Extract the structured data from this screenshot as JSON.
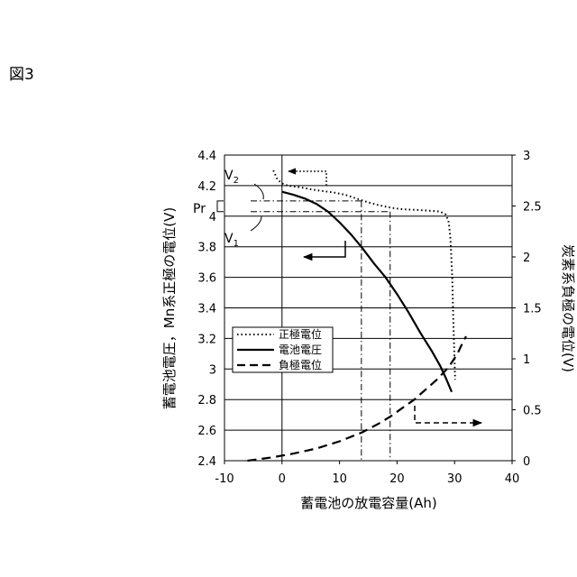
{
  "figure_label": "図3",
  "chart_data": {
    "type": "line",
    "xlabel": "蓄電池の放電容量(Ah)",
    "ylabel_left": "蓄電池電圧，Mn系正極の電位(V)",
    "ylabel_right": "炭素系負極の電位(V)",
    "xlim": [
      -10,
      40
    ],
    "ylim_left": [
      2.4,
      4.4
    ],
    "ylim_right": [
      0,
      3
    ],
    "x_ticks": [
      "-10",
      "0",
      "10",
      "20",
      "30",
      "40"
    ],
    "y_left_ticks": [
      "2.4",
      "2.6",
      "2.8",
      "3",
      "3.2",
      "3.4",
      "3.6",
      "3.8",
      "4",
      "4.2",
      "4.4"
    ],
    "y_right_ticks": [
      "0",
      "0.5",
      "1",
      "1.5",
      "2",
      "2.5",
      "3"
    ],
    "grid": "horizontal",
    "legend_position": "left-middle",
    "series": [
      {
        "name": "正極電位",
        "axis": "left",
        "style": "dotted",
        "points": [
          [
            -1.5,
            4.3
          ],
          [
            -0.8,
            4.24
          ],
          [
            0,
            4.215
          ],
          [
            1,
            4.2
          ],
          [
            3,
            4.19
          ],
          [
            6,
            4.17
          ],
          [
            9,
            4.155
          ],
          [
            11,
            4.14
          ],
          [
            13,
            4.115
          ],
          [
            15,
            4.09
          ],
          [
            17,
            4.07
          ],
          [
            19,
            4.055
          ],
          [
            21,
            4.045
          ],
          [
            24,
            4.04
          ],
          [
            26,
            4.035
          ],
          [
            27.5,
            4.03
          ],
          [
            28.5,
            4.01
          ],
          [
            29,
            3.96
          ],
          [
            29.3,
            3.85
          ],
          [
            29.6,
            3.6
          ],
          [
            29.8,
            3.3
          ],
          [
            30,
            3.05
          ],
          [
            30.1,
            2.93
          ]
        ]
      },
      {
        "name": "電池電圧",
        "axis": "left",
        "style": "solid",
        "points": [
          [
            0,
            4.16
          ],
          [
            2,
            4.14
          ],
          [
            4,
            4.115
          ],
          [
            6,
            4.08
          ],
          [
            8,
            4.03
          ],
          [
            10,
            3.96
          ],
          [
            12,
            3.88
          ],
          [
            14,
            3.79
          ],
          [
            16,
            3.69
          ],
          [
            18,
            3.6
          ],
          [
            20,
            3.49
          ],
          [
            22,
            3.37
          ],
          [
            24,
            3.24
          ],
          [
            26,
            3.12
          ],
          [
            27.5,
            3.02
          ],
          [
            28.5,
            2.94
          ],
          [
            29.5,
            2.85
          ]
        ]
      },
      {
        "name": "負極電位",
        "axis": "right",
        "style": "dashed",
        "points": [
          [
            -6,
            0
          ],
          [
            -2,
            0.03
          ],
          [
            2,
            0.07
          ],
          [
            6,
            0.12
          ],
          [
            10,
            0.19
          ],
          [
            14,
            0.28
          ],
          [
            17,
            0.37
          ],
          [
            19,
            0.44
          ],
          [
            21,
            0.52
          ],
          [
            23,
            0.6
          ],
          [
            25,
            0.7
          ],
          [
            27,
            0.8
          ],
          [
            29,
            0.92
          ],
          [
            30.5,
            1.05
          ],
          [
            31.5,
            1.17
          ],
          [
            32,
            1.22
          ]
        ]
      }
    ],
    "annotations": {
      "v2_label": "V",
      "v2_sub": "2",
      "v1_label": "V",
      "v1_sub": "1",
      "pr_label": "Pr",
      "reference_lines": {
        "v2": 4.1,
        "v1": 4.03,
        "x1": 13.8,
        "x2": 18.8
      }
    }
  }
}
